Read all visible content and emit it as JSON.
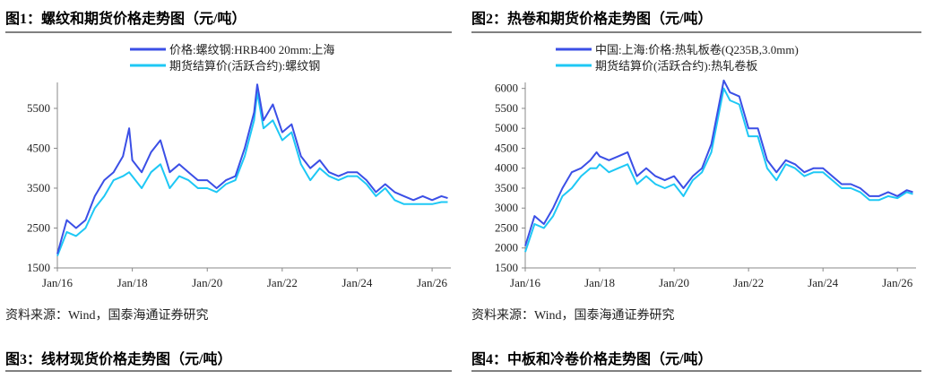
{
  "chart_data": [
    {
      "type": "line",
      "title": "图1：螺纹和期货价格走势图（元/吨）",
      "x": [
        "2016-01",
        "2016-04",
        "2016-07",
        "2016-10",
        "2017-01",
        "2017-04",
        "2017-07",
        "2017-10",
        "2017-12",
        "2018-01",
        "2018-04",
        "2018-07",
        "2018-10",
        "2019-01",
        "2019-04",
        "2019-07",
        "2019-10",
        "2020-01",
        "2020-04",
        "2020-07",
        "2020-10",
        "2021-01",
        "2021-04",
        "2021-05",
        "2021-07",
        "2021-10",
        "2022-01",
        "2022-04",
        "2022-07",
        "2022-10",
        "2023-01",
        "2023-04",
        "2023-07",
        "2023-10",
        "2024-01",
        "2024-04",
        "2024-07",
        "2024-10",
        "2025-01",
        "2025-04",
        "2025-07",
        "2025-10",
        "2026-01",
        "2026-04",
        "2026-06"
      ],
      "series": [
        {
          "name": "价格:螺纹钢:HRB400 20mm:上海",
          "color": "#3b4fe6",
          "values": [
            1850,
            2700,
            2500,
            2700,
            3300,
            3700,
            3900,
            4300,
            5000,
            4200,
            3900,
            4400,
            4700,
            3900,
            4100,
            3900,
            3700,
            3700,
            3500,
            3700,
            3800,
            4500,
            5400,
            6100,
            5200,
            5600,
            4900,
            5100,
            4300,
            4000,
            4200,
            3900,
            3800,
            3900,
            3900,
            3700,
            3400,
            3600,
            3400,
            3300,
            3200,
            3300,
            3200,
            3300,
            3250
          ]
        },
        {
          "name": "期货结算价(活跃合约):螺纹钢",
          "color": "#1ec8f5",
          "values": [
            1800,
            2400,
            2300,
            2500,
            3000,
            3300,
            3700,
            3800,
            3900,
            3800,
            3500,
            3900,
            4100,
            3500,
            3800,
            3700,
            3500,
            3500,
            3400,
            3600,
            3700,
            4300,
            5200,
            5900,
            5000,
            5200,
            4700,
            4900,
            4100,
            3700,
            4000,
            3800,
            3700,
            3800,
            3800,
            3600,
            3300,
            3500,
            3200,
            3100,
            3100,
            3100,
            3100,
            3150,
            3150
          ]
        }
      ],
      "xlim": [
        "2016-01",
        "2026-07"
      ],
      "xticks": [
        {
          "value": "2016-01",
          "label": "Jan/16"
        },
        {
          "value": "2018-01",
          "label": "Jan/18"
        },
        {
          "value": "2020-01",
          "label": "Jan/20"
        },
        {
          "value": "2022-01",
          "label": "Jan/22"
        },
        {
          "value": "2024-01",
          "label": "Jan/24"
        },
        {
          "value": "2026-01",
          "label": "Jan/26"
        }
      ],
      "ylim": [
        1500,
        6150
      ],
      "yticks": [
        1500,
        2500,
        3500,
        4500,
        5500
      ],
      "source": "资料来源：Wind，国泰海通证券研究"
    },
    {
      "type": "line",
      "title": "图2：热卷和期货价格走势图（元/吨）",
      "x": [
        "2016-01",
        "2016-04",
        "2016-07",
        "2016-10",
        "2017-01",
        "2017-04",
        "2017-07",
        "2017-10",
        "2017-12",
        "2018-01",
        "2018-04",
        "2018-07",
        "2018-10",
        "2019-01",
        "2019-04",
        "2019-07",
        "2019-10",
        "2020-01",
        "2020-04",
        "2020-07",
        "2020-10",
        "2021-01",
        "2021-04",
        "2021-05",
        "2021-07",
        "2021-10",
        "2022-01",
        "2022-04",
        "2022-07",
        "2022-10",
        "2023-01",
        "2023-04",
        "2023-07",
        "2023-10",
        "2024-01",
        "2024-04",
        "2024-07",
        "2024-10",
        "2025-01",
        "2025-04",
        "2025-07",
        "2025-10",
        "2026-01",
        "2026-04",
        "2026-06"
      ],
      "series": [
        {
          "name": "中国:上海:价格:热轧板卷(Q235B,3.0mm)",
          "color": "#3b4fe6",
          "values": [
            2050,
            2800,
            2600,
            3000,
            3500,
            3900,
            4000,
            4200,
            4400,
            4300,
            4200,
            4300,
            4400,
            3800,
            4000,
            3800,
            3700,
            3800,
            3500,
            3800,
            4000,
            4600,
            5800,
            6200,
            5900,
            5800,
            5000,
            5000,
            4200,
            3900,
            4200,
            4100,
            3900,
            4000,
            4000,
            3800,
            3600,
            3600,
            3500,
            3300,
            3300,
            3400,
            3300,
            3450,
            3400
          ]
        },
        {
          "name": "期货结算价(活跃合约):热轧卷板",
          "color": "#1ec8f5",
          "values": [
            1900,
            2600,
            2500,
            2800,
            3300,
            3500,
            3800,
            4000,
            4000,
            4100,
            3900,
            4000,
            4100,
            3600,
            3800,
            3600,
            3500,
            3600,
            3300,
            3700,
            3900,
            4400,
            5600,
            6000,
            5700,
            5600,
            4800,
            4800,
            4000,
            3700,
            4100,
            4000,
            3800,
            3900,
            3900,
            3700,
            3500,
            3500,
            3400,
            3200,
            3200,
            3300,
            3250,
            3400,
            3350
          ]
        }
      ],
      "xlim": [
        "2016-01",
        "2026-07"
      ],
      "xticks": [
        {
          "value": "2016-01",
          "label": "Jan/16"
        },
        {
          "value": "2018-01",
          "label": "Jan/18"
        },
        {
          "value": "2020-01",
          "label": "Jan/20"
        },
        {
          "value": "2022-01",
          "label": "Jan/22"
        },
        {
          "value": "2024-01",
          "label": "Jan/24"
        },
        {
          "value": "2026-01",
          "label": "Jan/26"
        }
      ],
      "ylim": [
        1500,
        6150
      ],
      "yticks": [
        1500,
        2000,
        2500,
        3000,
        3500,
        4000,
        4500,
        5000,
        5500,
        6000
      ],
      "source": "资料来源：Wind，国泰海通证券研究"
    }
  ],
  "next_figures": [
    "图3：线材现货价格走势图（元/吨）",
    "图4：中板和冷卷价格走势图（元/吨）"
  ]
}
